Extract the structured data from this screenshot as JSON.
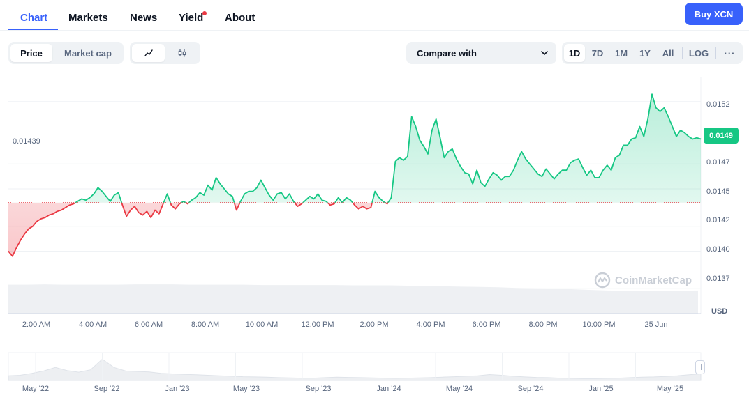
{
  "nav": {
    "tabs": [
      {
        "label": "Chart",
        "active": true
      },
      {
        "label": "Markets",
        "active": false
      },
      {
        "label": "News",
        "active": false
      },
      {
        "label": "Yield",
        "active": false,
        "has_dot": true
      },
      {
        "label": "About",
        "active": false
      }
    ],
    "buy_label": "Buy XCN"
  },
  "toolbar": {
    "price_label": "Price",
    "marketcap_label": "Market cap",
    "line_icon": "line-chart-icon",
    "candle_icon": "candlestick-icon",
    "compare_label": "Compare with",
    "ranges": [
      "1D",
      "7D",
      "1M",
      "1Y",
      "All"
    ],
    "active_range": "1D",
    "log_label": "LOG",
    "more_icon": "more-horizontal-icon"
  },
  "colors": {
    "accent": "#3861fb",
    "up": "#16c784",
    "down": "#ea3943",
    "text_muted": "#58667e"
  },
  "chart": {
    "open_price_label": "0.01439",
    "current_price_label": "0.0149",
    "currency_label": "USD",
    "watermark": "CoinMarketCap",
    "x_tick_labels": [
      "2:00 AM",
      "4:00 AM",
      "6:00 AM",
      "8:00 AM",
      "10:00 AM",
      "12:00 PM",
      "2:00 PM",
      "4:00 PM",
      "6:00 PM",
      "8:00 PM",
      "10:00 PM",
      "25 Jun"
    ],
    "y_tick_labels": [
      "0.0152",
      "0.0149",
      "0.0147",
      "0.0145",
      "0.0142",
      "0.0140",
      "0.0137"
    ]
  },
  "navigator": {
    "x_tick_labels": [
      "May '22",
      "Sep '22",
      "Jan '23",
      "May '23",
      "Sep '23",
      "Jan '24",
      "May '24",
      "Sep '24",
      "Jan '25",
      "May '25"
    ]
  },
  "chart_data": {
    "type": "line",
    "series": [
      {
        "values": [
          0.014,
          0.01396,
          0.01403,
          0.01409,
          0.01414,
          0.01418,
          0.0142,
          0.01424,
          0.01426,
          0.01427,
          0.01429,
          0.0143,
          0.01432,
          0.01433,
          0.01435,
          0.01437,
          0.01438,
          0.0144,
          0.01442,
          0.01441,
          0.01443,
          0.01446,
          0.01451,
          0.01448,
          0.01444,
          0.0144,
          0.01445,
          0.01447,
          0.01437,
          0.01428,
          0.01433,
          0.01436,
          0.01431,
          0.01429,
          0.01432,
          0.01427,
          0.01433,
          0.0143,
          0.01438,
          0.01446,
          0.01437,
          0.01434,
          0.01438,
          0.0144,
          0.01438,
          0.01441,
          0.01443,
          0.01447,
          0.01445,
          0.01453,
          0.01449,
          0.01459,
          0.01454,
          0.0145,
          0.01446,
          0.01444,
          0.01433,
          0.0144,
          0.01446,
          0.01448,
          0.01448,
          0.01451,
          0.01457,
          0.01451,
          0.01445,
          0.01441,
          0.01446,
          0.01447,
          0.01442,
          0.01446,
          0.0144,
          0.01436,
          0.01438,
          0.01441,
          0.01444,
          0.01442,
          0.01446,
          0.01441,
          0.0144,
          0.01437,
          0.01438,
          0.01443,
          0.01439,
          0.01443,
          0.01441,
          0.01437,
          0.01434,
          0.01436,
          0.01434,
          0.01435,
          0.01448,
          0.01443,
          0.0144,
          0.01438,
          0.01443,
          0.01472,
          0.01475,
          0.01473,
          0.01476,
          0.01508,
          0.015,
          0.01489,
          0.01484,
          0.01478,
          0.01497,
          0.01506,
          0.01491,
          0.01475,
          0.0148,
          0.01482,
          0.01474,
          0.01468,
          0.01463,
          0.01462,
          0.01454,
          0.01465,
          0.01455,
          0.01452,
          0.01458,
          0.01463,
          0.01461,
          0.01457,
          0.0146,
          0.0146,
          0.01465,
          0.01473,
          0.0148,
          0.01474,
          0.0147,
          0.01466,
          0.01462,
          0.0146,
          0.01466,
          0.01462,
          0.01458,
          0.01462,
          0.01465,
          0.01465,
          0.01471,
          0.01473,
          0.01474,
          0.01467,
          0.01461,
          0.01465,
          0.01459,
          0.01459,
          0.01465,
          0.01469,
          0.01465,
          0.01475,
          0.01477,
          0.01485,
          0.01485,
          0.0149,
          0.01491,
          0.015,
          0.01492,
          0.01506,
          0.01526,
          0.01515,
          0.01512,
          0.01515,
          0.01508,
          0.015,
          0.01492,
          0.01497,
          0.01495,
          0.01492,
          0.0149,
          0.01491,
          0.0149
        ]
      }
    ],
    "ylim": [
      0.0135,
      0.0154
    ],
    "baseline": 0.01439,
    "last_value": 0.0149,
    "y_ticks": [
      0.0152,
      0.0149,
      0.0147,
      0.0145,
      0.0142,
      0.014,
      0.0137
    ],
    "grid": true,
    "volume": [
      0.9,
      0.9,
      0.91,
      0.9,
      0.9,
      0.9,
      0.9,
      0.91,
      0.91,
      0.91,
      0.9,
      0.9,
      0.9,
      0.9,
      0.89,
      0.89,
      0.89,
      0.89,
      0.89,
      0.88,
      0.88,
      0.88,
      0.87,
      0.86,
      0.85,
      0.84,
      0.83,
      0.82,
      0.8,
      0.79,
      0.78,
      0.76,
      0.74,
      0.72,
      0.71,
      0.7,
      0.7,
      0.71,
      0.72
    ],
    "overview": [
      0.2,
      0.22,
      0.3,
      0.4,
      0.55,
      0.42,
      0.35,
      0.45,
      0.9,
      0.55,
      0.4,
      0.38,
      0.36,
      0.3,
      0.28,
      0.26,
      0.24,
      0.22,
      0.2,
      0.18,
      0.16,
      0.15,
      0.14,
      0.12,
      0.11,
      0.1,
      0.1,
      0.12,
      0.14,
      0.13,
      0.12,
      0.11,
      0.1,
      0.09,
      0.1,
      0.11,
      0.12,
      0.14,
      0.16,
      0.18,
      0.2,
      0.25,
      0.22,
      0.18,
      0.15,
      0.13,
      0.12,
      0.1,
      0.09,
      0.08,
      0.08,
      0.09,
      0.1,
      0.12,
      0.14,
      0.15,
      0.17,
      0.2,
      0.24,
      0.28
    ]
  }
}
